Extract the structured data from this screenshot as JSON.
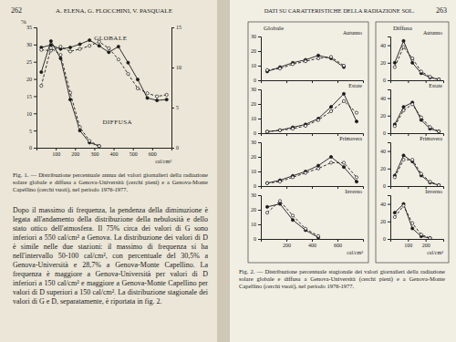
{
  "page": {
    "left_header": {
      "page_number": "262",
      "authors": "A. ELENA, G. FLOCCHINI, V. PASQUALE"
    },
    "right_header": {
      "title": "DATI SU CARATTERISTICHE DELLA RADIAZIONE SOL.",
      "page_number": "263"
    },
    "fig1_caption": "Fig. 1. — Distribuzione percentuale annua dei valori giornalieri della radiazione solare globale e diffusa a Genova-Università (cerchi pieni) e a Genova-Monte Capellino (cerchi vuoti), nel periodo 1976-1977.",
    "body": "Dopo il massimo di frequenza, la pendenza della diminuzione è legata all'andamento della distribuzione della nebulosità e dello stato ottico dell'atmosfera. Il 75% circa dei valori di G sono inferiori a 550 cal/cm² a Genova. La distribuzione dei valori di D è simile nelle due stazioni: il massimo di frequenza si ha nell'intervallo 50-100 cal/cm², con percentuale del 30,5% a Genova-Università e 28,7% a Genova-Monte Capellino. La frequenza è maggiore a Genova-Università per valori di D inferiori a 150 cal/cm² e maggiore a Genova-Monte Capellino per valori di D superiori a 150 cal/cm². La distribuzione stagionale dei valori di G e D, separatamente, è riportata in fig. 2.",
    "fig2_panels": [
      "Globale",
      "Diffusa"
    ],
    "fig2_caption": "Fig. 2. — Distribuzione percentuale stagionale dei valori giornalieri della radiazione solare globale e diffusa a Genova-Università (cerchi pieni) e a Genova-Monte Capellino (cerchi vuoti), nel periodo 1976-1977."
  },
  "chart_data": [
    {
      "type": "line",
      "annotations": [
        "GLOBALE",
        "DIFFUSA"
      ],
      "x_label": "cal/cm²",
      "y_label": "%",
      "x": [
        25,
        75,
        125,
        175,
        225,
        275,
        325,
        375,
        425,
        475,
        525,
        575,
        625,
        675
      ],
      "series": [
        {
          "axis": "y2",
          "marker": "circle",
          "line_style": "solid",
          "color": "#1a1a1a",
          "values": [
            12.5,
            12.8,
            12.3,
            12.5,
            12.9,
            13.4,
            12.7,
            11.9,
            12.6,
            10.6,
            8.5,
            6.2,
            5.9,
            6.0
          ]
        },
        {
          "axis": "y2",
          "marker": "open-circle",
          "line_style": "dashed",
          "color": "#1a1a1a",
          "values": [
            12.2,
            12.1,
            12.6,
            12.0,
            12.3,
            12.7,
            13.2,
            12.4,
            11.0,
            9.2,
            7.4,
            6.8,
            6.4,
            6.6
          ]
        },
        {
          "marker": "circle",
          "line_style": "solid",
          "color": "#1a1a1a",
          "values": [
            22,
            31,
            26,
            14,
            5,
            1.5,
            0.5,
            null,
            null,
            null,
            null,
            null,
            null,
            null
          ]
        },
        {
          "marker": "open-circle",
          "line_style": "dashed",
          "color": "#1a1a1a",
          "values": [
            18,
            29,
            27,
            16,
            6,
            2,
            0.5,
            null,
            null,
            null,
            null,
            null,
            null,
            null
          ]
        }
      ],
      "xlim": [
        0,
        700
      ],
      "xticks": [
        100,
        200,
        300,
        400,
        500,
        600
      ],
      "ylim": [
        0,
        35
      ],
      "yticks": [
        0,
        5,
        10,
        15,
        20,
        25,
        30,
        35
      ],
      "y2lim": [
        0,
        15
      ],
      "y2ticks": [
        0,
        5,
        10,
        15
      ]
    },
    {
      "type": "line",
      "title": "Autunno",
      "tick_labels": "y",
      "x": [
        50,
        150,
        250,
        350,
        450,
        550,
        650,
        750
      ],
      "series": [
        {
          "marker": "circle",
          "line_style": "solid",
          "color": "#1a1a1a",
          "values": [
            6,
            9,
            12,
            14,
            17,
            15,
            9,
            null
          ]
        },
        {
          "marker": "open-circle",
          "line_style": "dashed",
          "color": "#1a1a1a",
          "values": [
            7,
            8,
            11,
            13,
            15,
            16,
            10,
            null
          ]
        }
      ],
      "xlim": [
        0,
        800
      ],
      "xticks": [
        200,
        400,
        600
      ],
      "ylim": [
        0,
        30
      ],
      "yticks": [
        0,
        10,
        20,
        30
      ]
    },
    {
      "type": "line",
      "title": "Estate",
      "tick_labels": "y",
      "x": [
        50,
        150,
        250,
        350,
        450,
        550,
        650,
        750
      ],
      "series": [
        {
          "marker": "circle",
          "line_style": "solid",
          "color": "#1a1a1a",
          "values": [
            1,
            2,
            4,
            6,
            10,
            18,
            27,
            8
          ]
        },
        {
          "marker": "open-circle",
          "line_style": "dashed",
          "color": "#1a1a1a",
          "values": [
            1,
            2,
            3,
            5,
            9,
            15,
            22,
            14
          ]
        }
      ],
      "xlim": [
        0,
        800
      ],
      "xticks": [
        200,
        400,
        600
      ],
      "ylim": [
        0,
        30
      ],
      "yticks": [
        0,
        10,
        20,
        30
      ]
    },
    {
      "type": "line",
      "title": "Primavera",
      "tick_labels": "y",
      "x": [
        50,
        150,
        250,
        350,
        450,
        550,
        650,
        750
      ],
      "series": [
        {
          "marker": "circle",
          "line_style": "solid",
          "color": "#1a1a1a",
          "values": [
            2,
            4,
            7,
            10,
            14,
            20,
            13,
            3
          ]
        },
        {
          "marker": "open-circle",
          "line_style": "dashed",
          "color": "#1a1a1a",
          "values": [
            2,
            3,
            6,
            9,
            12,
            16,
            16,
            6
          ]
        }
      ],
      "xlim": [
        0,
        800
      ],
      "xticks": [
        200,
        400,
        600
      ],
      "ylim": [
        0,
        30
      ],
      "yticks": [
        0,
        10,
        20,
        30
      ]
    },
    {
      "type": "line",
      "title": "Inverno",
      "x_label": "cal/cm²",
      "x": [
        50,
        150,
        250,
        350,
        450,
        550,
        650,
        750
      ],
      "series": [
        {
          "marker": "circle",
          "line_style": "solid",
          "color": "#1a1a1a",
          "values": [
            22,
            24,
            13,
            6,
            1,
            null,
            null,
            null
          ]
        },
        {
          "marker": "open-circle",
          "line_style": "dashed",
          "color": "#1a1a1a",
          "values": [
            18,
            26,
            16,
            7,
            2,
            null,
            null,
            null
          ]
        }
      ],
      "xlim": [
        0,
        800
      ],
      "xticks": [
        200,
        400,
        600
      ],
      "ylim": [
        0,
        30
      ],
      "yticks": [
        0,
        10,
        20,
        30
      ]
    },
    {
      "type": "line",
      "title": "Autunno",
      "tick_labels": "y",
      "x": [
        25,
        75,
        125,
        175,
        225,
        275
      ],
      "series": [
        {
          "marker": "circle",
          "line_style": "solid",
          "color": "#1a1a1a",
          "values": [
            20,
            45,
            20,
            8,
            3,
            1
          ]
        },
        {
          "marker": "open-circle",
          "line_style": "dashed",
          "color": "#1a1a1a",
          "values": [
            15,
            38,
            25,
            10,
            4,
            1
          ]
        }
      ],
      "xlim": [
        0,
        300
      ],
      "xticks": [
        100,
        200
      ],
      "ylim": [
        0,
        50
      ],
      "yticks": [
        0,
        20,
        40
      ]
    },
    {
      "type": "line",
      "title": "Estate",
      "tick_labels": "y",
      "x": [
        25,
        75,
        125,
        175,
        225,
        275
      ],
      "series": [
        {
          "marker": "circle",
          "line_style": "solid",
          "color": "#1a1a1a",
          "values": [
            10,
            30,
            35,
            15,
            5,
            2
          ]
        },
        {
          "marker": "open-circle",
          "line_style": "dashed",
          "color": "#1a1a1a",
          "values": [
            8,
            26,
            33,
            18,
            7,
            2
          ]
        }
      ],
      "xlim": [
        0,
        300
      ],
      "xticks": [
        100,
        200
      ],
      "ylim": [
        0,
        50
      ],
      "yticks": [
        0,
        20,
        40
      ]
    },
    {
      "type": "line",
      "title": "Primavera",
      "tick_labels": "y",
      "x": [
        25,
        75,
        125,
        175,
        225,
        275
      ],
      "series": [
        {
          "marker": "circle",
          "line_style": "solid",
          "color": "#1a1a1a",
          "values": [
            12,
            35,
            28,
            12,
            4,
            1
          ]
        },
        {
          "marker": "open-circle",
          "line_style": "dashed",
          "color": "#1a1a1a",
          "values": [
            10,
            30,
            30,
            14,
            5,
            1
          ]
        }
      ],
      "xlim": [
        0,
        300
      ],
      "xticks": [
        100,
        200
      ],
      "ylim": [
        0,
        50
      ],
      "yticks": [
        0,
        20,
        40
      ]
    },
    {
      "type": "line",
      "title": "Inverno",
      "x_label": "cal/cm²",
      "x": [
        25,
        75,
        125,
        175,
        225,
        275
      ],
      "series": [
        {
          "marker": "circle",
          "line_style": "solid",
          "color": "#1a1a1a",
          "values": [
            30,
            40,
            12,
            3,
            1,
            null
          ]
        },
        {
          "marker": "open-circle",
          "line_style": "dashed",
          "color": "#1a1a1a",
          "values": [
            25,
            38,
            18,
            5,
            1,
            null
          ]
        }
      ],
      "xlim": [
        0,
        300
      ],
      "xticks": [
        100,
        200
      ],
      "ylim": [
        0,
        50
      ],
      "yticks": [
        0,
        20,
        40
      ]
    }
  ]
}
